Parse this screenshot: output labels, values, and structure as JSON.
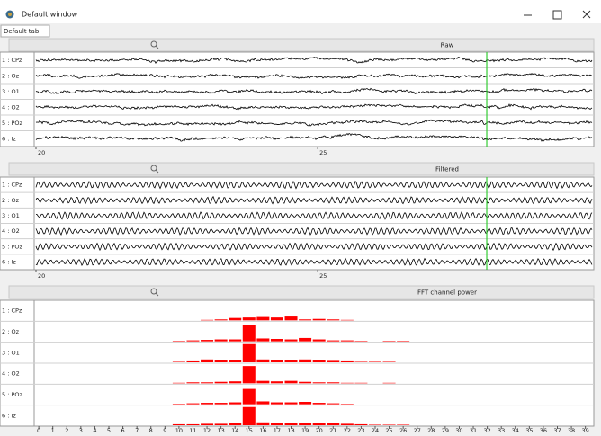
{
  "window": {
    "title": "Default window"
  },
  "tab": {
    "label": "Default tab"
  },
  "panels": [
    {
      "type": "signal",
      "title": "Raw",
      "channels": [
        "1 : CPz",
        "2 : Oz",
        "3 : O1",
        "4 : O2",
        "5 : POz",
        "6 : Iz"
      ],
      "xlim": [
        20,
        29.9
      ],
      "xticks": [
        20,
        25
      ],
      "cursor": 28
    },
    {
      "type": "signal",
      "title": "Filtered",
      "channels": [
        "1 : CPz",
        "2 : Oz",
        "3 : O1",
        "4 : O2",
        "5 : POz",
        "6 : Iz"
      ],
      "xlim": [
        20,
        29.9
      ],
      "xticks": [
        20,
        25
      ],
      "cursor": 28
    },
    {
      "type": "bar",
      "title": "FFT channel power",
      "xlim": [
        -0.2,
        39.6
      ],
      "xticks": [
        0,
        1,
        2,
        3,
        4,
        5,
        6,
        7,
        8,
        9,
        10,
        11,
        12,
        13,
        14,
        15,
        16,
        17,
        18,
        19,
        20,
        21,
        22,
        23,
        24,
        25,
        26,
        27,
        28,
        29,
        30,
        31,
        32,
        33,
        34,
        35,
        36,
        37,
        38,
        39
      ],
      "ylim": [
        0,
        20
      ],
      "series": [
        {
          "name": "1 : CPz",
          "color": "#ff0000",
          "values": [
            0,
            0,
            0,
            0,
            0,
            0,
            0,
            0,
            0,
            0,
            0,
            0,
            0.5,
            1,
            2.5,
            3,
            3.5,
            3,
            4,
            1,
            1.5,
            1,
            0.5,
            0,
            0,
            0,
            0,
            0,
            0,
            0,
            0,
            0,
            0,
            0,
            0,
            0,
            0,
            0,
            0,
            0
          ]
        },
        {
          "name": "2 : Oz",
          "color": "#ff0000",
          "values": [
            0,
            0,
            0,
            0,
            0,
            0,
            0,
            0,
            0,
            0,
            0.5,
            1,
            1.5,
            2,
            2,
            17,
            3,
            2.5,
            2,
            3.5,
            2,
            1,
            1,
            0.5,
            0,
            0.5,
            0.5,
            0,
            0,
            0,
            0,
            0,
            0,
            0,
            0,
            0,
            0,
            0,
            0,
            0
          ]
        },
        {
          "name": "3 : O1",
          "color": "#ff0000",
          "values": [
            0,
            0,
            0,
            0,
            0,
            0,
            0,
            0,
            0,
            0,
            0.5,
            1,
            3,
            2,
            2.5,
            19,
            3,
            2,
            2.5,
            3,
            2.5,
            1.5,
            1,
            0.5,
            0.5,
            0.5,
            0,
            0,
            0,
            0,
            0,
            0,
            0,
            0,
            0,
            0,
            0,
            0,
            0,
            0
          ]
        },
        {
          "name": "4 : O2",
          "color": "#ff0000",
          "values": [
            0,
            0,
            0,
            0,
            0,
            0,
            0,
            0,
            0,
            0,
            0.5,
            1,
            1,
            1.5,
            2,
            18,
            2.5,
            2,
            2.5,
            1.5,
            1,
            1,
            0.5,
            0.5,
            0,
            0.5,
            0,
            0,
            0,
            0,
            0,
            0,
            0,
            0,
            0,
            0,
            0,
            0,
            0,
            0
          ]
        },
        {
          "name": "5 : POz",
          "color": "#ff0000",
          "values": [
            0,
            0,
            0,
            0,
            0,
            0,
            0,
            0,
            0,
            0,
            0.5,
            1,
            1.5,
            1.5,
            2,
            16,
            3,
            2,
            2,
            2.5,
            1.5,
            1,
            0.5,
            0,
            0,
            0,
            0,
            0,
            0,
            0,
            0,
            0,
            0,
            0,
            0,
            0,
            0,
            0,
            0,
            0
          ]
        },
        {
          "name": "6 : Iz",
          "color": "#ff0000",
          "values": [
            0,
            0,
            0,
            0,
            0,
            0,
            0,
            0,
            0,
            0,
            1,
            1,
            1.5,
            1.5,
            2.5,
            19,
            3,
            2.5,
            2.5,
            2.5,
            2,
            2,
            1.5,
            1,
            0.5,
            0.5,
            0.5,
            0,
            0,
            0,
            0,
            0,
            0,
            0,
            0,
            0,
            0,
            0,
            0,
            0
          ]
        }
      ]
    }
  ]
}
